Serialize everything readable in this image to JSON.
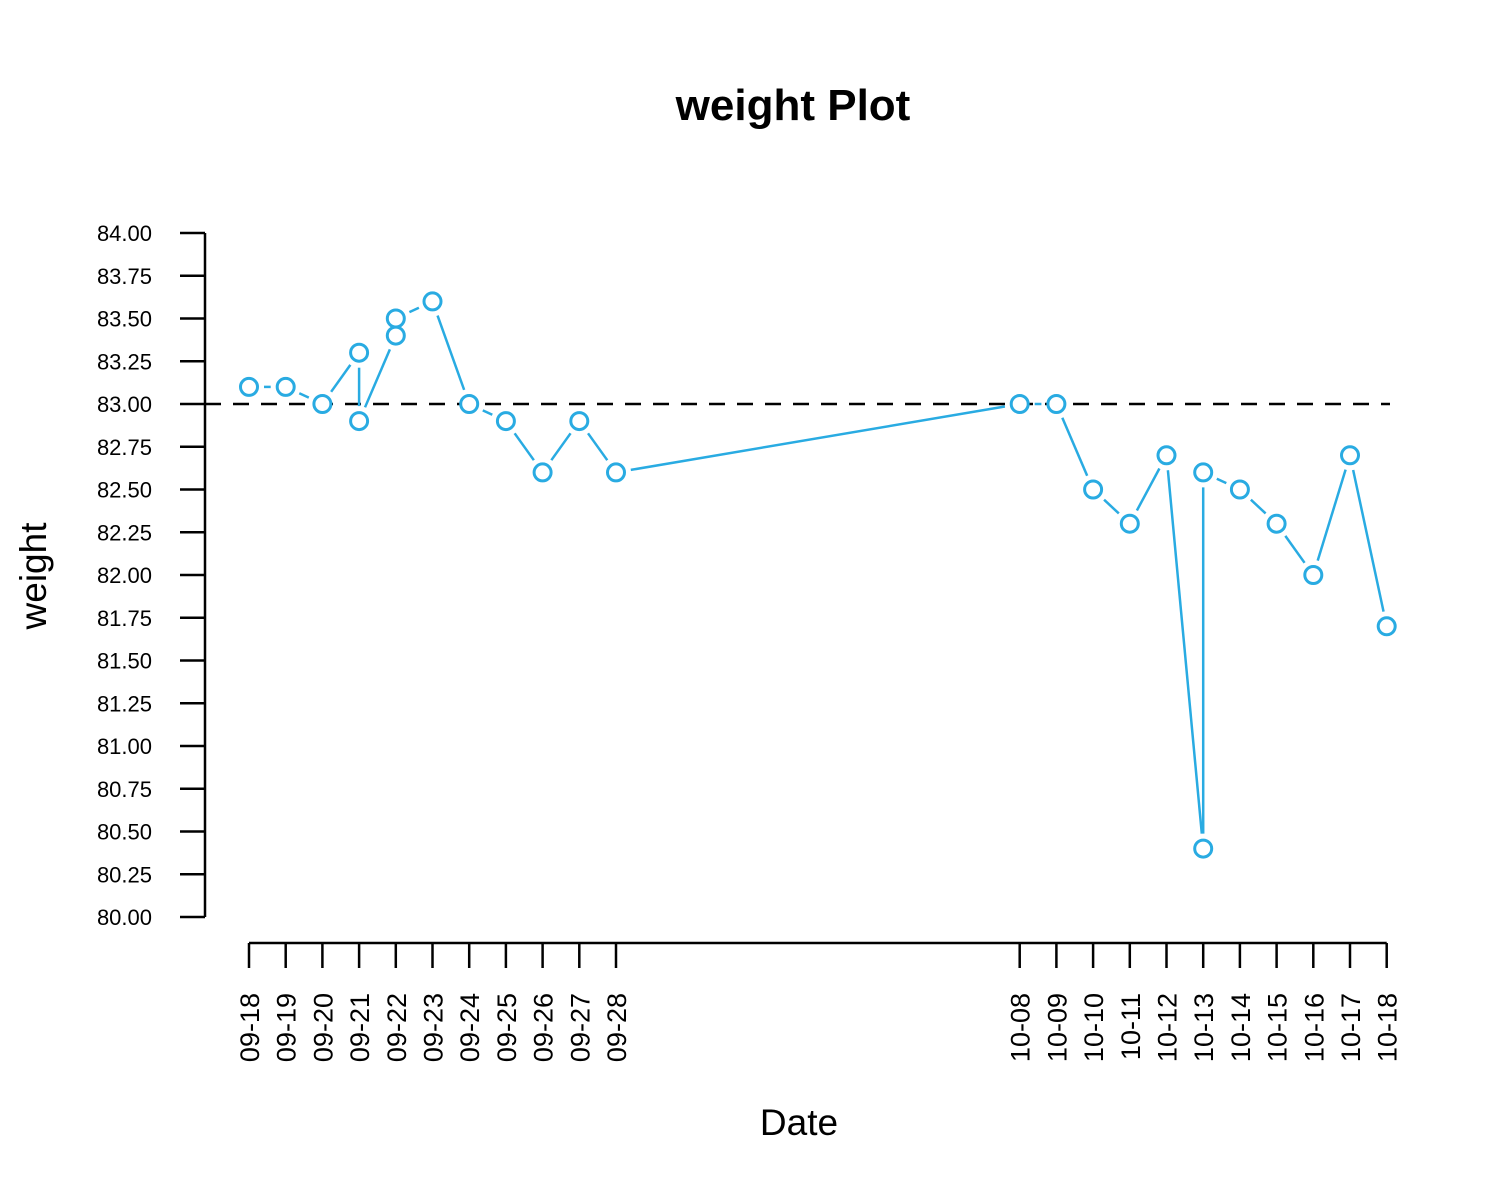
{
  "chart_data": {
    "type": "line",
    "title": "weight  Plot",
    "xlabel": "Date",
    "ylabel": "weight",
    "ylim": [
      80.0,
      84.0
    ],
    "y_ticks": [
      "80.00",
      "80.25",
      "80.50",
      "80.75",
      "81.00",
      "81.25",
      "81.50",
      "81.75",
      "82.00",
      "82.25",
      "82.50",
      "82.75",
      "83.00",
      "83.25",
      "83.50",
      "83.75",
      "84.00"
    ],
    "x_ticks": [
      "09-18",
      "09-19",
      "09-20",
      "09-21",
      "09-22",
      "09-23",
      "09-24",
      "09-25",
      "09-26",
      "09-27",
      "09-28",
      "10-08",
      "10-09",
      "10-10",
      "10-11",
      "10-12",
      "10-13",
      "10-14",
      "10-15",
      "10-16",
      "10-17",
      "10-18"
    ],
    "reference_line": 83.0,
    "color": "#29abe2",
    "grid": false,
    "legend": "none",
    "series": [
      {
        "x": [
          "09-18",
          "09-19",
          "09-20",
          "09-21",
          "09-21",
          "09-22",
          "09-22",
          "09-23",
          "09-24",
          "09-25",
          "09-26",
          "09-27",
          "09-28",
          "10-08",
          "10-09",
          "10-10",
          "10-11",
          "10-12",
          "10-13",
          "10-13",
          "10-14",
          "10-15",
          "10-16",
          "10-17",
          "10-18"
        ],
        "values": [
          83.1,
          83.1,
          83.0,
          83.3,
          82.9,
          83.4,
          83.5,
          83.6,
          83.0,
          82.9,
          82.6,
          82.9,
          82.6,
          83.0,
          83.0,
          82.5,
          82.3,
          82.7,
          80.4,
          82.6,
          82.5,
          82.3,
          82.0,
          82.7,
          81.7
        ]
      }
    ]
  }
}
